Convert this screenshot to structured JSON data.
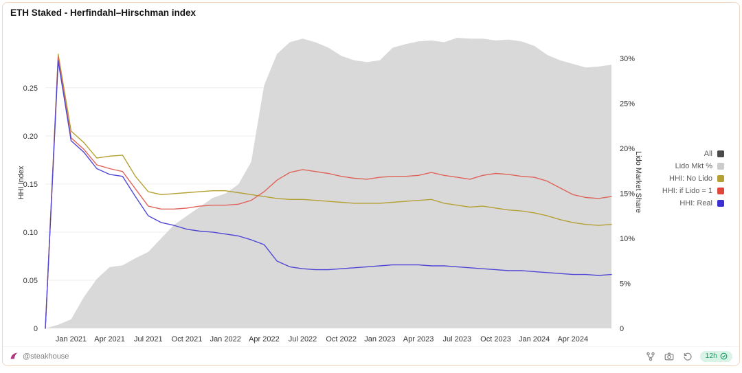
{
  "header": {
    "title": "ETH Staked - Herfindahl–Hirschman index"
  },
  "footer": {
    "handle": "@steakhouse",
    "refresh_badge": "12h",
    "icons": [
      "author-logo-icon",
      "fork-icon",
      "camera-icon",
      "history-icon",
      "check-circle-icon"
    ]
  },
  "colors": {
    "card_border": "#f3d6bf",
    "area_gray": "#d9d9d9",
    "grid": "#ededed",
    "olive": "#b4a033",
    "red": "#e0635a",
    "blue": "#4f46d6",
    "badge_bg": "#d9f4e6",
    "badge_text": "#13a06b"
  },
  "chart_data": {
    "type": "line",
    "title": "ETH Staked - Herfindahl–Hirschman index",
    "grid": true,
    "legend_position": "right",
    "left_axis": {
      "label": "HHI Index",
      "max": 0.302,
      "ticks": [
        {
          "v": 0,
          "label": "0"
        },
        {
          "v": 0.05,
          "label": "0.05"
        },
        {
          "v": 0.1,
          "label": "0.10"
        },
        {
          "v": 0.15,
          "label": "0.15"
        },
        {
          "v": 0.2,
          "label": "0.20"
        },
        {
          "v": 0.25,
          "label": "0.25"
        }
      ]
    },
    "right_axis": {
      "label": "Lido Market Share",
      "max": 32.3,
      "ticks": [
        {
          "v": 0,
          "label": "0"
        },
        {
          "v": 5,
          "label": "5%"
        },
        {
          "v": 10,
          "label": "10%"
        },
        {
          "v": 15,
          "label": "15%"
        },
        {
          "v": 20,
          "label": "20%"
        },
        {
          "v": 25,
          "label": "25%"
        },
        {
          "v": 30,
          "label": "30%"
        }
      ]
    },
    "months": [
      "2020-11",
      "2020-12",
      "2021-01",
      "2021-02",
      "2021-03",
      "2021-04",
      "2021-05",
      "2021-06",
      "2021-07",
      "2021-08",
      "2021-09",
      "2021-10",
      "2021-11",
      "2021-12",
      "2022-01",
      "2022-02",
      "2022-03",
      "2022-04",
      "2022-05",
      "2022-06",
      "2022-07",
      "2022-08",
      "2022-09",
      "2022-10",
      "2022-11",
      "2022-12",
      "2023-01",
      "2023-02",
      "2023-03",
      "2023-04",
      "2023-05",
      "2023-06",
      "2023-07",
      "2023-08",
      "2023-09",
      "2023-10",
      "2023-11",
      "2023-12",
      "2024-01",
      "2024-02",
      "2024-03",
      "2024-04",
      "2024-05",
      "2024-06",
      "2024-07"
    ],
    "x_ticks": [
      {
        "month": "2021-01",
        "label": "Jan 2021"
      },
      {
        "month": "2021-04",
        "label": "Apr 2021"
      },
      {
        "month": "2021-07",
        "label": "Jul 2021"
      },
      {
        "month": "2021-10",
        "label": "Oct 2021"
      },
      {
        "month": "2022-01",
        "label": "Jan 2022"
      },
      {
        "month": "2022-04",
        "label": "Apr 2022"
      },
      {
        "month": "2022-07",
        "label": "Jul 2022"
      },
      {
        "month": "2022-10",
        "label": "Oct 2022"
      },
      {
        "month": "2023-01",
        "label": "Jan 2023"
      },
      {
        "month": "2023-04",
        "label": "Apr 2023"
      },
      {
        "month": "2023-07",
        "label": "Jul 2023"
      },
      {
        "month": "2023-10",
        "label": "Oct 2023"
      },
      {
        "month": "2024-01",
        "label": "Jan 2024"
      },
      {
        "month": "2024-04",
        "label": "Apr 2024"
      }
    ],
    "series": [
      {
        "key": "lido_mkt",
        "name": "Lido Mkt %",
        "type": "area",
        "axis": "right",
        "color": "#d9d9d9",
        "values": [
          0.0,
          0.4,
          1.0,
          3.5,
          5.5,
          6.8,
          7.0,
          7.8,
          8.5,
          10.0,
          11.5,
          12.5,
          13.5,
          14.5,
          15.0,
          16.0,
          18.5,
          27.0,
          30.5,
          31.8,
          32.2,
          31.8,
          31.2,
          30.3,
          29.8,
          29.6,
          29.8,
          31.2,
          31.6,
          31.9,
          32.0,
          31.8,
          32.3,
          32.2,
          32.2,
          32.0,
          32.1,
          31.9,
          31.4,
          30.4,
          29.8,
          29.4,
          29.0,
          29.1,
          29.3
        ]
      },
      {
        "key": "hhi_no_lido",
        "name": "HHI: No Lido",
        "type": "line",
        "axis": "left",
        "color": "#b4a033",
        "values": [
          0.0,
          0.285,
          0.205,
          0.193,
          0.177,
          0.179,
          0.18,
          0.158,
          0.142,
          0.139,
          0.14,
          0.141,
          0.142,
          0.143,
          0.143,
          0.141,
          0.139,
          0.137,
          0.135,
          0.134,
          0.134,
          0.133,
          0.132,
          0.131,
          0.13,
          0.13,
          0.13,
          0.131,
          0.132,
          0.133,
          0.134,
          0.13,
          0.128,
          0.126,
          0.127,
          0.125,
          0.123,
          0.122,
          0.12,
          0.117,
          0.113,
          0.11,
          0.108,
          0.107,
          0.108
        ]
      },
      {
        "key": "hhi_if_lido_1",
        "name": "HHI: if Lido = 1",
        "type": "line",
        "axis": "left",
        "color": "#e0635a",
        "values": [
          0.0,
          0.282,
          0.198,
          0.186,
          0.17,
          0.166,
          0.163,
          0.145,
          0.127,
          0.124,
          0.124,
          0.125,
          0.127,
          0.128,
          0.128,
          0.129,
          0.133,
          0.142,
          0.154,
          0.162,
          0.165,
          0.163,
          0.161,
          0.158,
          0.156,
          0.155,
          0.157,
          0.158,
          0.158,
          0.159,
          0.162,
          0.159,
          0.157,
          0.155,
          0.159,
          0.161,
          0.16,
          0.158,
          0.157,
          0.153,
          0.146,
          0.139,
          0.136,
          0.135,
          0.137
        ]
      },
      {
        "key": "hhi_real",
        "name": "HHI: Real",
        "type": "line",
        "axis": "left",
        "color": "#4f46d6",
        "values": [
          0.0,
          0.278,
          0.195,
          0.183,
          0.166,
          0.16,
          0.158,
          0.137,
          0.117,
          0.11,
          0.107,
          0.103,
          0.101,
          0.1,
          0.098,
          0.096,
          0.092,
          0.087,
          0.07,
          0.064,
          0.062,
          0.061,
          0.061,
          0.062,
          0.063,
          0.064,
          0.065,
          0.066,
          0.066,
          0.066,
          0.065,
          0.065,
          0.064,
          0.063,
          0.062,
          0.061,
          0.06,
          0.06,
          0.059,
          0.058,
          0.057,
          0.056,
          0.056,
          0.055,
          0.056
        ]
      }
    ],
    "legend": [
      {
        "label": "All",
        "color": "#4a4a4a"
      },
      {
        "label": "Lido Mkt %",
        "color": "#cccccc"
      },
      {
        "label": "HHI: No Lido",
        "color": "#b4a033"
      },
      {
        "label": "HHI: if Lido = 1",
        "color": "#e0473c"
      },
      {
        "label": "HHI: Real",
        "color": "#3a30d1"
      }
    ]
  }
}
